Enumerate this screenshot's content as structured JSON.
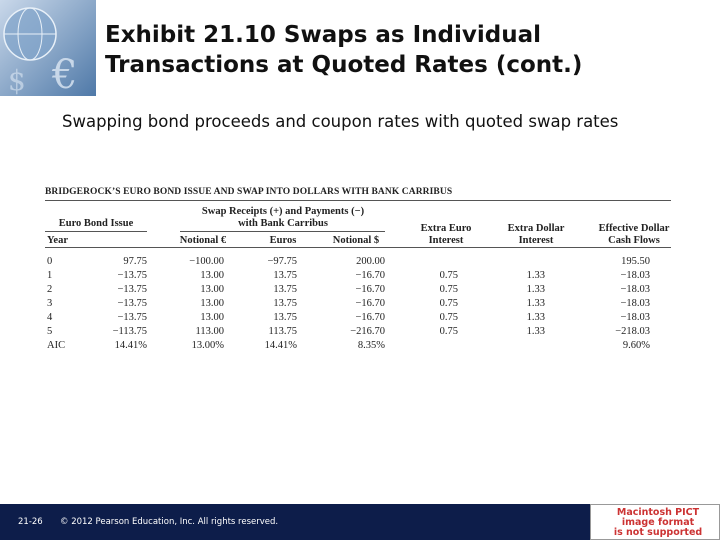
{
  "header": {
    "title_lines": [
      "Exhibit 21.10  Swaps as Individual",
      "Transactions at Quoted Rates (cont.)"
    ],
    "subtitle": "Swapping bond proceeds and coupon rates with quoted swap rates"
  },
  "table": {
    "title": "BRIDGEROCK’S EURO BOND ISSUE AND SWAP INTO DOLLARS WITH BANK CARRIBUS",
    "group_headers": [
      "Euro Bond Issue",
      "Swap Receipts (+) and Payments (−) with Bank Carribus"
    ],
    "columns": [
      "Year",
      null,
      "Notional €",
      "Euros",
      "Notional $",
      "Extra Euro Interest",
      "Extra Dollar Interest",
      "Effective Dollar Cash Flows"
    ],
    "rows": [
      [
        "0",
        "97.75",
        "−100.00",
        "−97.75",
        "200.00",
        null,
        null,
        "195.50"
      ],
      [
        "1",
        "−13.75",
        "13.00",
        "13.75",
        "−16.70",
        "0.75",
        "1.33",
        "−18.03"
      ],
      [
        "2",
        "−13.75",
        "13.00",
        "13.75",
        "−16.70",
        "0.75",
        "1.33",
        "−18.03"
      ],
      [
        "3",
        "−13.75",
        "13.00",
        "13.75",
        "−16.70",
        "0.75",
        "1.33",
        "−18.03"
      ],
      [
        "4",
        "−13.75",
        "13.00",
        "13.75",
        "−16.70",
        "0.75",
        "1.33",
        "−18.03"
      ],
      [
        "5",
        "−113.75",
        "113.00",
        "113.75",
        "−216.70",
        "0.75",
        "1.33",
        "−218.03"
      ],
      [
        "AIC",
        "14.41%",
        "13.00%",
        "14.41%",
        "8.35%",
        null,
        null,
        "9.60%"
      ]
    ]
  },
  "footer": {
    "slide_number": "21-26",
    "copyright": "© 2012 Pearson Education, Inc. All rights reserved.",
    "image_placeholder": [
      "Macintosh PICT",
      "image format",
      "is not supported"
    ]
  }
}
